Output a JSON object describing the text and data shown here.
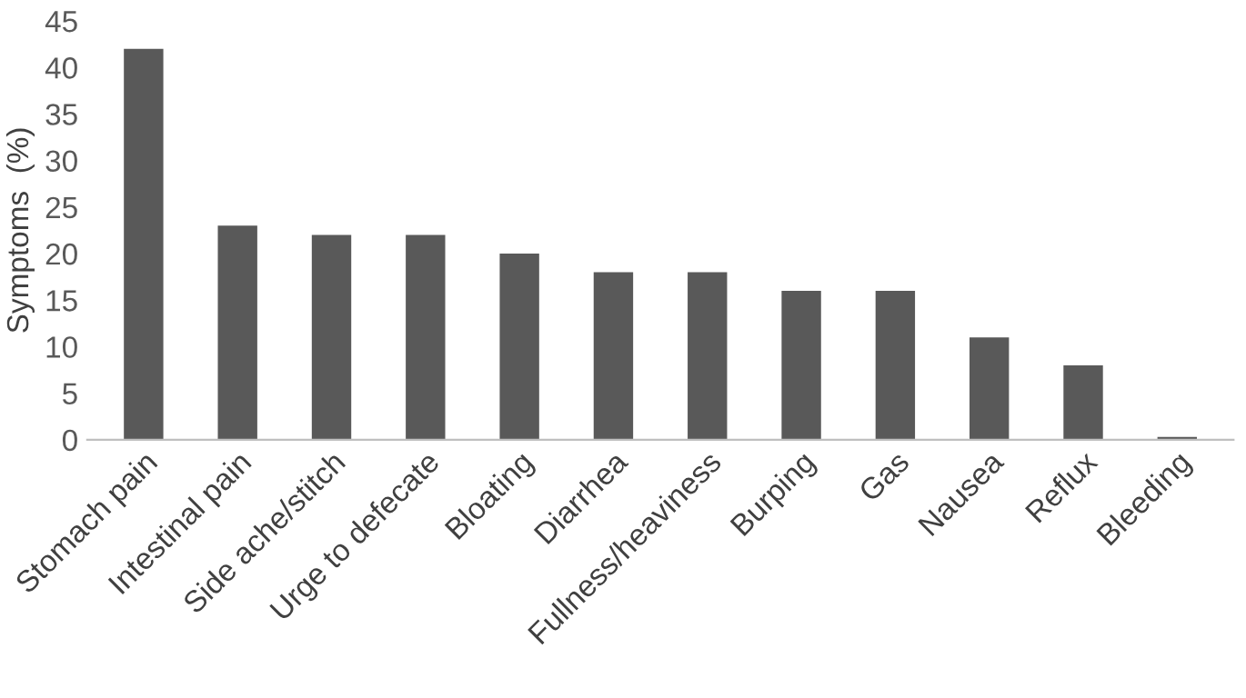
{
  "chart_data": {
    "type": "bar",
    "ylabel": "Symptoms  (%)",
    "categories": [
      "Stomach pain",
      "Intestinal pain",
      "Side ache/stitch",
      "Urge to defecate",
      "Bloating",
      "Diarrhea",
      "Fullness/heaviness",
      "Burping",
      "Gas",
      "Nausea",
      "Reflux",
      "Bleeding"
    ],
    "values": [
      42,
      23,
      22,
      22,
      20,
      18,
      18,
      16,
      16,
      11,
      8,
      0.3
    ],
    "color": "#595959",
    "ylim": [
      0,
      45
    ],
    "yticks": [
      0,
      5,
      10,
      15,
      20,
      25,
      30,
      35,
      40,
      45
    ],
    "grid": false
  }
}
